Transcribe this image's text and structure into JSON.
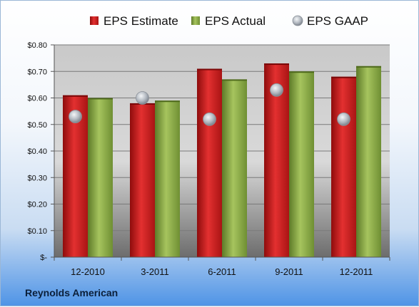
{
  "company": "Reynolds American",
  "chart_data": {
    "type": "bar",
    "categories": [
      "12-2010",
      "3-2011",
      "6-2011",
      "9-2011",
      "12-2011"
    ],
    "series": [
      {
        "name": "EPS Estimate",
        "marker": "bar",
        "color": "#d11f1f",
        "values": [
          0.61,
          0.58,
          0.71,
          0.73,
          0.68
        ]
      },
      {
        "name": "EPS Actual",
        "marker": "bar",
        "color": "#8fb04a",
        "values": [
          0.6,
          0.59,
          0.67,
          0.7,
          0.72
        ]
      },
      {
        "name": "EPS GAAP",
        "marker": "point",
        "color": "#b9bfc7",
        "values": [
          0.53,
          0.6,
          0.52,
          0.63,
          0.52
        ]
      }
    ],
    "yticks": [
      "$-",
      "$0.10",
      "$0.20",
      "$0.30",
      "$0.40",
      "$0.50",
      "$0.60",
      "$0.70",
      "$0.80"
    ],
    "ylim": [
      0,
      0.8
    ],
    "grid": true,
    "legend_position": "top"
  }
}
